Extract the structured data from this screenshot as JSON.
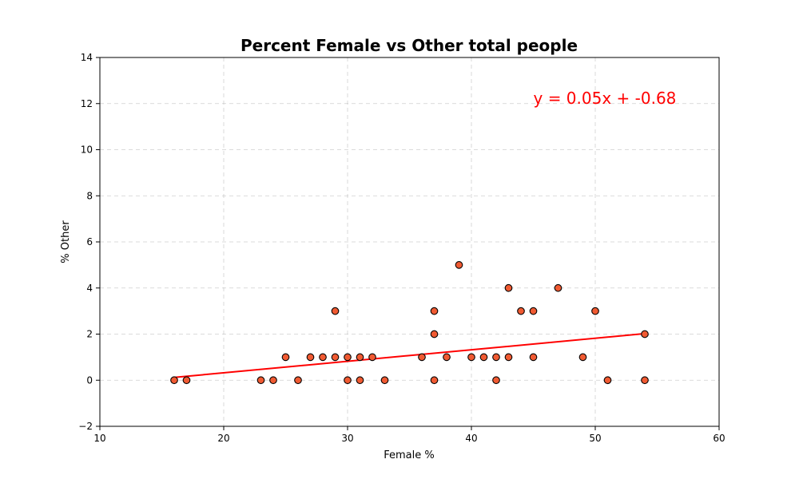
{
  "chart_data": {
    "type": "scatter",
    "title": "Percent Female vs Other total people",
    "xlabel": "Female %",
    "ylabel": "% Other",
    "xlim": [
      10,
      60
    ],
    "ylim": [
      -2,
      14
    ],
    "xticks": [
      "10",
      "20",
      "30",
      "40",
      "50",
      "60"
    ],
    "yticks": [
      "−2",
      "0",
      "2",
      "4",
      "6",
      "8",
      "10",
      "12",
      "14"
    ],
    "grid": true,
    "points": [
      [
        16,
        0
      ],
      [
        17,
        0
      ],
      [
        23,
        0
      ],
      [
        24,
        0
      ],
      [
        25,
        1
      ],
      [
        26,
        0
      ],
      [
        27,
        1
      ],
      [
        28,
        1
      ],
      [
        29,
        1
      ],
      [
        29,
        3
      ],
      [
        30,
        0
      ],
      [
        30,
        1
      ],
      [
        31,
        0
      ],
      [
        31,
        1
      ],
      [
        32,
        1
      ],
      [
        33,
        0
      ],
      [
        36,
        1
      ],
      [
        37,
        0
      ],
      [
        37,
        2
      ],
      [
        37,
        3
      ],
      [
        38,
        1
      ],
      [
        39,
        5
      ],
      [
        40,
        1
      ],
      [
        41,
        1
      ],
      [
        42,
        0
      ],
      [
        42,
        1
      ],
      [
        43,
        1
      ],
      [
        43,
        4
      ],
      [
        44,
        3
      ],
      [
        45,
        1
      ],
      [
        45,
        3
      ],
      [
        47,
        4
      ],
      [
        49,
        1
      ],
      [
        50,
        3
      ],
      [
        51,
        0
      ],
      [
        54,
        0
      ],
      [
        54,
        2
      ]
    ],
    "regression": {
      "slope": 0.05,
      "intercept": -0.68,
      "x_range": [
        16,
        54
      ]
    },
    "annotation": {
      "text": "y = 0.05x + -0.68",
      "x": 45,
      "y": 12
    },
    "colors": {
      "point_fill": "#f05a32",
      "point_edge": "#000000",
      "line": "#ff0000",
      "annotation": "#ff0000"
    }
  }
}
